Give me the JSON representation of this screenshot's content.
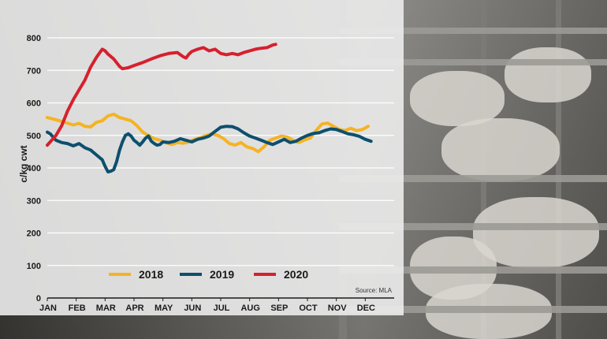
{
  "chart_data": {
    "type": "line",
    "ylabel": "c/kg cwt",
    "xlabel": "",
    "title": "",
    "ylim": [
      0,
      800
    ],
    "yticks": [
      0,
      100,
      200,
      300,
      400,
      500,
      600,
      700,
      800
    ],
    "x_categories": [
      "JAN",
      "FEB",
      "MAR",
      "APR",
      "MAY",
      "JUN",
      "JUL",
      "AUG",
      "SEP",
      "OCT",
      "NOV",
      "DEC"
    ],
    "grid": true,
    "legend_placement": "bottom-center",
    "source": "Source: MLA",
    "series": [
      {
        "name": "2018",
        "color": "#f5b324",
        "points": [
          [
            0.0,
            555
          ],
          [
            0.3,
            548
          ],
          [
            0.6,
            540
          ],
          [
            0.9,
            532
          ],
          [
            1.1,
            537
          ],
          [
            1.3,
            528
          ],
          [
            1.5,
            526
          ],
          [
            1.7,
            540
          ],
          [
            1.9,
            545
          ],
          [
            2.1,
            560
          ],
          [
            2.3,
            565
          ],
          [
            2.5,
            555
          ],
          [
            2.7,
            550
          ],
          [
            2.9,
            545
          ],
          [
            3.1,
            530
          ],
          [
            3.3,
            510
          ],
          [
            3.5,
            500
          ],
          [
            3.7,
            490
          ],
          [
            3.9,
            485
          ],
          [
            4.1,
            478
          ],
          [
            4.3,
            472
          ],
          [
            4.5,
            478
          ],
          [
            4.7,
            476
          ],
          [
            4.9,
            480
          ],
          [
            5.1,
            488
          ],
          [
            5.3,
            493
          ],
          [
            5.5,
            500
          ],
          [
            5.7,
            505
          ],
          [
            5.9,
            500
          ],
          [
            6.1,
            490
          ],
          [
            6.3,
            475
          ],
          [
            6.5,
            470
          ],
          [
            6.7,
            478
          ],
          [
            6.9,
            465
          ],
          [
            7.1,
            460
          ],
          [
            7.3,
            450
          ],
          [
            7.5,
            465
          ],
          [
            7.7,
            485
          ],
          [
            7.9,
            492
          ],
          [
            8.1,
            498
          ],
          [
            8.3,
            495
          ],
          [
            8.5,
            485
          ],
          [
            8.7,
            478
          ],
          [
            8.9,
            486
          ],
          [
            9.1,
            492
          ],
          [
            9.3,
            515
          ],
          [
            9.5,
            535
          ],
          [
            9.7,
            538
          ],
          [
            9.9,
            528
          ],
          [
            10.1,
            518
          ],
          [
            10.3,
            515
          ],
          [
            10.5,
            522
          ],
          [
            10.7,
            515
          ],
          [
            10.9,
            518
          ],
          [
            11.1,
            528
          ]
        ]
      },
      {
        "name": "2019",
        "color": "#0d4f6e",
        "points": [
          [
            0.0,
            510
          ],
          [
            0.1,
            505
          ],
          [
            0.3,
            485
          ],
          [
            0.5,
            478
          ],
          [
            0.7,
            475
          ],
          [
            0.9,
            468
          ],
          [
            1.1,
            475
          ],
          [
            1.3,
            462
          ],
          [
            1.5,
            455
          ],
          [
            1.7,
            440
          ],
          [
            1.9,
            425
          ],
          [
            2.0,
            405
          ],
          [
            2.1,
            388
          ],
          [
            2.2,
            390
          ],
          [
            2.3,
            395
          ],
          [
            2.4,
            420
          ],
          [
            2.5,
            455
          ],
          [
            2.6,
            480
          ],
          [
            2.7,
            500
          ],
          [
            2.8,
            505
          ],
          [
            2.9,
            498
          ],
          [
            3.0,
            485
          ],
          [
            3.1,
            478
          ],
          [
            3.2,
            470
          ],
          [
            3.3,
            480
          ],
          [
            3.4,
            492
          ],
          [
            3.5,
            498
          ],
          [
            3.6,
            482
          ],
          [
            3.7,
            475
          ],
          [
            3.8,
            470
          ],
          [
            3.9,
            472
          ],
          [
            4.0,
            480
          ],
          [
            4.2,
            478
          ],
          [
            4.4,
            482
          ],
          [
            4.6,
            490
          ],
          [
            4.8,
            485
          ],
          [
            5.0,
            480
          ],
          [
            5.2,
            488
          ],
          [
            5.4,
            492
          ],
          [
            5.6,
            498
          ],
          [
            5.8,
            512
          ],
          [
            6.0,
            525
          ],
          [
            6.2,
            528
          ],
          [
            6.4,
            527
          ],
          [
            6.6,
            520
          ],
          [
            6.8,
            508
          ],
          [
            7.0,
            498
          ],
          [
            7.2,
            492
          ],
          [
            7.4,
            485
          ],
          [
            7.6,
            478
          ],
          [
            7.8,
            472
          ],
          [
            8.0,
            480
          ],
          [
            8.2,
            488
          ],
          [
            8.4,
            478
          ],
          [
            8.6,
            482
          ],
          [
            8.8,
            492
          ],
          [
            9.0,
            500
          ],
          [
            9.2,
            506
          ],
          [
            9.4,
            508
          ],
          [
            9.6,
            515
          ],
          [
            9.8,
            520
          ],
          [
            10.0,
            518
          ],
          [
            10.2,
            512
          ],
          [
            10.4,
            505
          ],
          [
            10.6,
            502
          ],
          [
            10.8,
            497
          ],
          [
            11.0,
            488
          ],
          [
            11.2,
            482
          ]
        ]
      },
      {
        "name": "2020",
        "color": "#d6202e",
        "points": [
          [
            0.0,
            470
          ],
          [
            0.1,
            480
          ],
          [
            0.3,
            500
          ],
          [
            0.5,
            530
          ],
          [
            0.7,
            575
          ],
          [
            0.9,
            610
          ],
          [
            1.1,
            640
          ],
          [
            1.3,
            670
          ],
          [
            1.5,
            710
          ],
          [
            1.7,
            740
          ],
          [
            1.9,
            765
          ],
          [
            2.0,
            760
          ],
          [
            2.1,
            750
          ],
          [
            2.3,
            735
          ],
          [
            2.5,
            712
          ],
          [
            2.6,
            705
          ],
          [
            2.8,
            708
          ],
          [
            3.0,
            715
          ],
          [
            3.3,
            724
          ],
          [
            3.6,
            735
          ],
          [
            3.9,
            745
          ],
          [
            4.2,
            752
          ],
          [
            4.5,
            755
          ],
          [
            4.7,
            742
          ],
          [
            4.8,
            738
          ],
          [
            4.9,
            750
          ],
          [
            5.0,
            758
          ],
          [
            5.2,
            765
          ],
          [
            5.4,
            770
          ],
          [
            5.6,
            760
          ],
          [
            5.8,
            765
          ],
          [
            6.0,
            752
          ],
          [
            6.2,
            748
          ],
          [
            6.4,
            752
          ],
          [
            6.6,
            748
          ],
          [
            6.8,
            755
          ],
          [
            7.0,
            760
          ],
          [
            7.2,
            765
          ],
          [
            7.4,
            768
          ],
          [
            7.6,
            770
          ],
          [
            7.8,
            778
          ],
          [
            7.9,
            780
          ]
        ]
      }
    ]
  }
}
